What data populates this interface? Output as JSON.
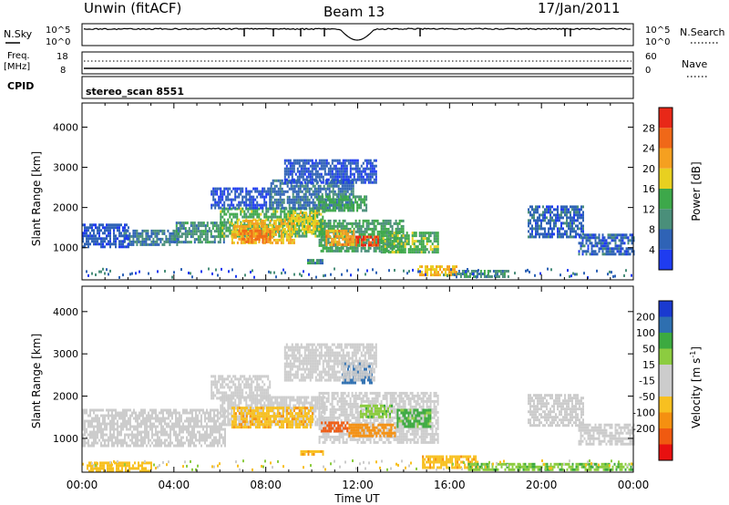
{
  "header": {
    "station": "Unwin (fitACF)",
    "beam": "Beam 13",
    "date": "17/Jan/2011"
  },
  "noise_panel": {
    "left_label": "N.Sky",
    "right_label": "N.Search",
    "ticks_left": [
      "10^5",
      "10^0"
    ],
    "ticks_right": [
      "10^5",
      "10^0"
    ]
  },
  "freq_panel": {
    "left_label": "Freq.",
    "left_unit": "[MHz]",
    "right_label": "Nave",
    "ticks_left": [
      "18",
      "8"
    ],
    "ticks_right": [
      "60",
      "0"
    ]
  },
  "cpid": {
    "label": "CPID",
    "value": "stereo_scan 8551"
  },
  "colors": {
    "power": [
      "#1f3cf0",
      "#2f63b6",
      "#4a8f7a",
      "#3da84a",
      "#e8d020",
      "#f5a020",
      "#f06818",
      "#e82818"
    ],
    "velocity": [
      "#e81010",
      "#f05a10",
      "#f59010",
      "#f8c020",
      "#cccccc",
      "#cccccc",
      "#8ccc40",
      "#3caa40",
      "#2e6fb0",
      "#1a3ad0"
    ]
  },
  "chart_data": [
    {
      "type": "heatmap",
      "quantity": "power",
      "ylabel": "Slant Range [km]",
      "yticks": [
        "1000",
        "2000",
        "3000",
        "4000"
      ],
      "ylim": [
        200,
        4600
      ],
      "xlim": [
        0,
        24
      ],
      "colorbar_label": "Power [dB]",
      "colorbar_ticks": [
        "4",
        "8",
        "12",
        "16",
        "20",
        "24",
        "28"
      ],
      "colorbar_range": [
        0,
        32
      ],
      "regions": [
        {
          "t0": 1.8,
          "t1": 4.2,
          "r0": 1100,
          "r1": 1450,
          "level": 8
        },
        {
          "t0": 4.0,
          "t1": 6.2,
          "r0": 1150,
          "r1": 1650,
          "level": 10
        },
        {
          "t0": 6.0,
          "t1": 10.6,
          "r0": 1300,
          "r1": 2000,
          "level": 14
        },
        {
          "t0": 6.5,
          "t1": 9.2,
          "r0": 1150,
          "r1": 1700,
          "level": 20
        },
        {
          "t0": 6.8,
          "t1": 8.2,
          "r0": 1150,
          "r1": 1450,
          "level": 24
        },
        {
          "t0": 9.0,
          "t1": 10.5,
          "r0": 1400,
          "r1": 1900,
          "level": 18
        },
        {
          "t0": 10.3,
          "t1": 14.0,
          "r0": 900,
          "r1": 1700,
          "level": 12
        },
        {
          "t0": 10.6,
          "t1": 11.8,
          "r0": 1100,
          "r1": 1450,
          "level": 22
        },
        {
          "t0": 11.9,
          "t1": 12.9,
          "r0": 1050,
          "r1": 1300,
          "level": 28
        },
        {
          "t0": 13.0,
          "t1": 15.5,
          "r0": 900,
          "r1": 1400,
          "level": 14
        },
        {
          "t0": 14.6,
          "t1": 16.3,
          "r0": 350,
          "r1": 560,
          "level": 20
        },
        {
          "t0": 16.3,
          "t1": 18.6,
          "r0": 300,
          "r1": 450,
          "level": 10
        },
        {
          "t0": 8.2,
          "t1": 11.8,
          "r0": 2000,
          "r1": 2700,
          "level": 7
        },
        {
          "t0": 5.6,
          "t1": 8.2,
          "r0": 2000,
          "r1": 2500,
          "level": 5
        },
        {
          "t0": 8.8,
          "t1": 12.8,
          "r0": 2600,
          "r1": 3200,
          "level": 5
        },
        {
          "t0": 10.2,
          "t1": 12.4,
          "r0": 1900,
          "r1": 2300,
          "level": 13
        },
        {
          "t0": 9.8,
          "t1": 10.5,
          "r0": 600,
          "r1": 720,
          "level": 10
        },
        {
          "t0": 0.0,
          "t1": 2.0,
          "r0": 1000,
          "r1": 1600,
          "level": 5
        },
        {
          "t0": 19.4,
          "t1": 21.8,
          "r0": 1300,
          "r1": 2050,
          "level": 6
        },
        {
          "t0": 21.6,
          "t1": 24.0,
          "r0": 850,
          "r1": 1350,
          "level": 6
        }
      ]
    },
    {
      "type": "heatmap",
      "quantity": "velocity",
      "ylabel": "Slant Range [km]",
      "yticks": [
        "1000",
        "2000",
        "3000",
        "4000"
      ],
      "ylim": [
        200,
        4600
      ],
      "xlim": [
        0,
        24
      ],
      "xticks": [
        "00:00",
        "04:00",
        "08:00",
        "12:00",
        "16:00",
        "20:00",
        "00:00"
      ],
      "xlabel": "Time UT",
      "colorbar_label": "Velocity [m s^-1]",
      "colorbar_ticks": [
        "200",
        "100",
        "50",
        "15",
        "-15",
        "-50",
        "-100",
        "-200"
      ],
      "colorbar_range": [
        -250,
        250
      ],
      "regions": [
        {
          "t0": 0.0,
          "t1": 6.2,
          "r0": 800,
          "r1": 1700,
          "value": 0
        },
        {
          "t0": 6.0,
          "t1": 10.6,
          "r0": 1300,
          "r1": 2000,
          "value": 0
        },
        {
          "t0": 6.5,
          "t1": 10.0,
          "r0": 1250,
          "r1": 1750,
          "value": -40
        },
        {
          "t0": 10.3,
          "t1": 15.5,
          "r0": 900,
          "r1": 2100,
          "value": 0
        },
        {
          "t0": 10.4,
          "t1": 11.6,
          "r0": 1200,
          "r1": 1400,
          "value": -150
        },
        {
          "t0": 11.6,
          "t1": 13.6,
          "r0": 1050,
          "r1": 1350,
          "value": -80
        },
        {
          "t0": 12.1,
          "t1": 13.5,
          "r0": 1500,
          "r1": 1800,
          "value": 40
        },
        {
          "t0": 13.7,
          "t1": 15.2,
          "r0": 1300,
          "r1": 1700,
          "value": 60
        },
        {
          "t0": 14.8,
          "t1": 17.2,
          "r0": 340,
          "r1": 600,
          "value": -40
        },
        {
          "t0": 16.8,
          "t1": 24.0,
          "r0": 250,
          "r1": 420,
          "value": 45
        },
        {
          "t0": 11.3,
          "t1": 12.6,
          "r0": 2300,
          "r1": 2800,
          "value": 180
        },
        {
          "t0": 8.8,
          "t1": 12.8,
          "r0": 2400,
          "r1": 3250,
          "value": 0
        },
        {
          "t0": 5.6,
          "t1": 8.2,
          "r0": 1950,
          "r1": 2500,
          "value": 0
        },
        {
          "t0": 9.5,
          "t1": 10.5,
          "r0": 600,
          "r1": 720,
          "value": -40
        },
        {
          "t0": 19.4,
          "t1": 21.8,
          "r0": 1300,
          "r1": 2050,
          "value": 0
        },
        {
          "t0": 21.6,
          "t1": 24.0,
          "r0": 850,
          "r1": 1350,
          "value": 0
        },
        {
          "t0": 0.2,
          "t1": 3.0,
          "r0": 250,
          "r1": 450,
          "value": -30
        }
      ]
    }
  ]
}
